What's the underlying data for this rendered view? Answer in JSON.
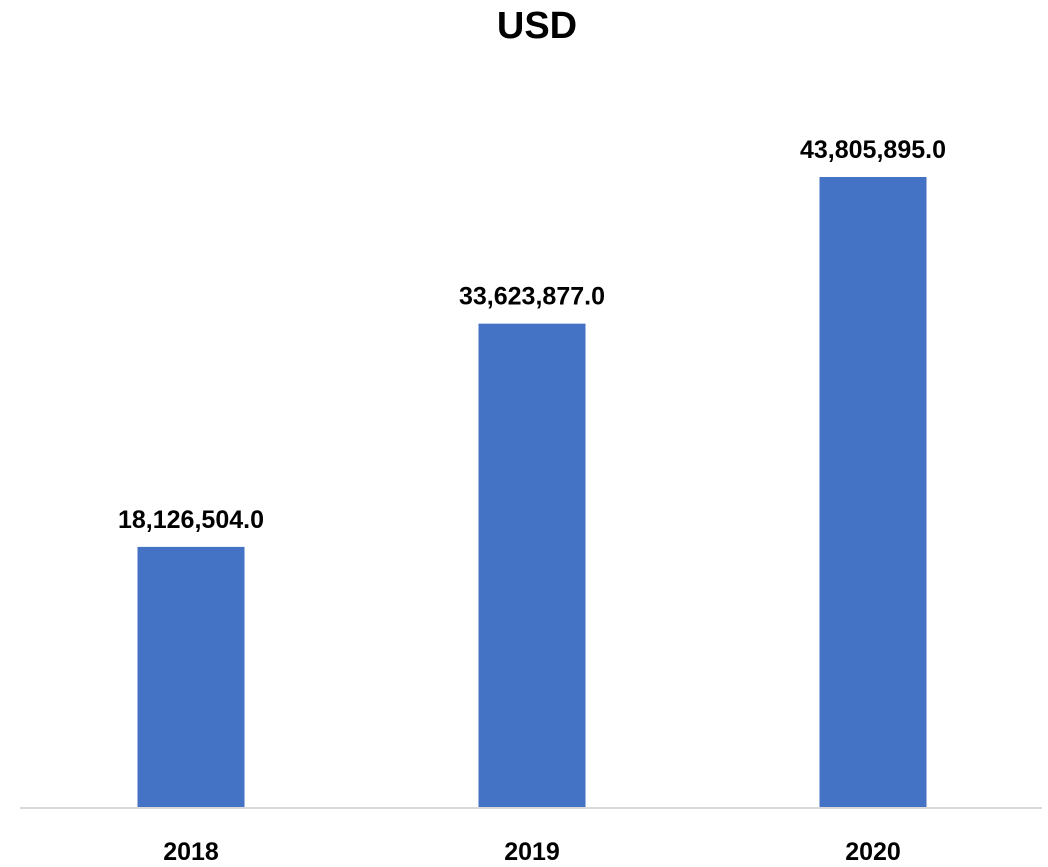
{
  "chart_data": {
    "type": "bar",
    "title": "USD",
    "categories": [
      "2018",
      "2019",
      "2020"
    ],
    "values": [
      18126504.0,
      33623877.0,
      43805895.0
    ],
    "data_labels": [
      "18,126,504.0",
      "33,623,877.0",
      "43,805,895.0"
    ],
    "xlabel": "",
    "ylabel": "",
    "ylim": [
      0,
      50000000
    ],
    "grid": false,
    "legend": "none",
    "colors": {
      "bar": "#4472C4",
      "axis": "#D9D9D9",
      "text": "#000000"
    }
  }
}
